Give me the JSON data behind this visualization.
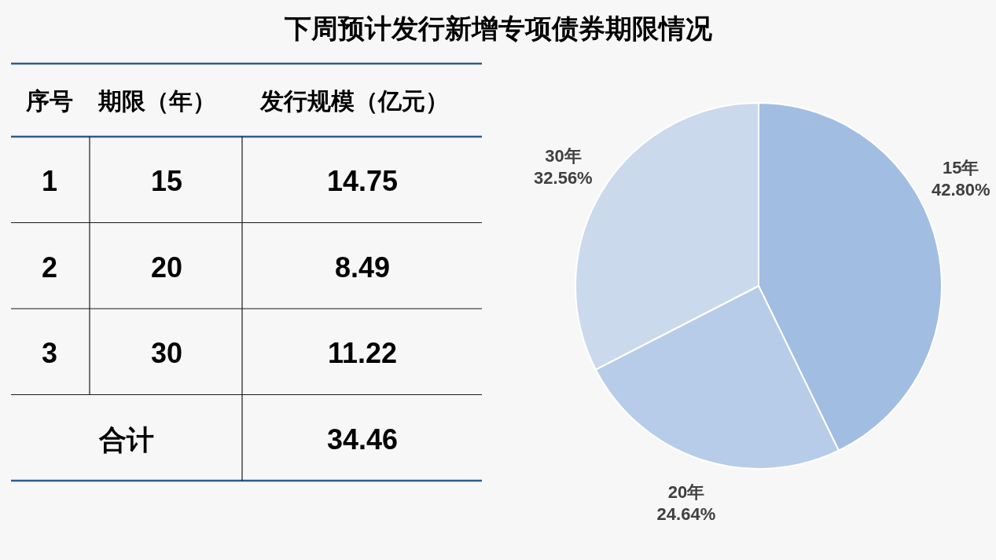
{
  "chart_data": [
    {
      "type": "other",
      "annotations": [
        "序号",
        "期限（年）",
        "发行规模（亿元）",
        "1",
        "15",
        "14.75",
        "2",
        "20",
        "8.49",
        "3",
        "30",
        "11.22",
        "合计",
        "34.46"
      ]
    },
    {
      "type": "pie",
      "title": "下周预计发行新增专项债券期限情况",
      "categories": [
        "15年",
        "20年",
        "30年"
      ],
      "values": [
        42.8,
        24.64,
        32.56
      ],
      "colors": [
        "#a2bde2",
        "#b7cce8",
        "#cbd9ed"
      ],
      "value_labels": [
        "42.80%",
        "24.64%",
        "32.56%"
      ]
    }
  ]
}
